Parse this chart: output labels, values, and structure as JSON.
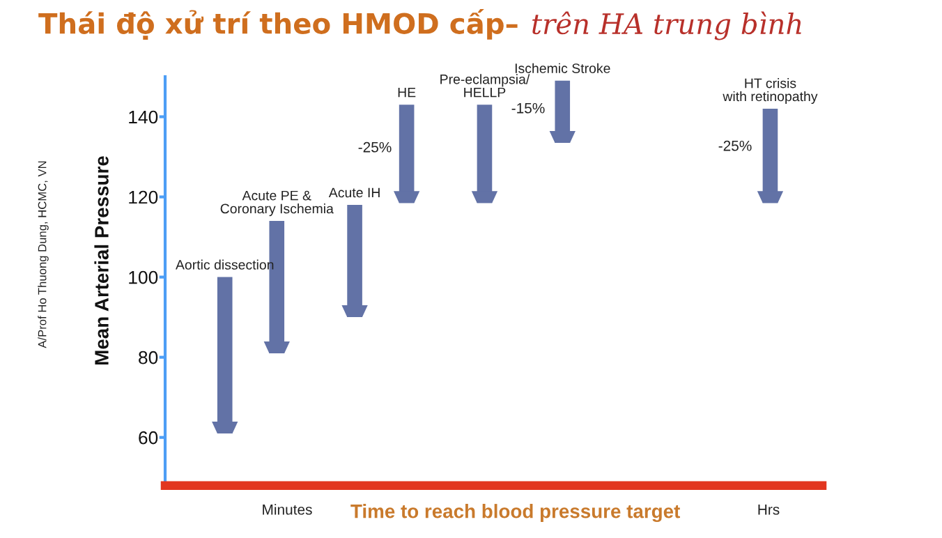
{
  "chart_data": {
    "type": "bar",
    "title": "Thái độ xử trí theo HMOD cấp–",
    "subtitle": "trên HA trung bình",
    "xlabel": "Time to reach blood pressure target",
    "ylabel": "Mean Arterial Pressure",
    "categories": [
      "Aortic dissection",
      null,
      "Acute PE &\nCoronary Ischemia",
      null,
      null,
      "Acute IH",
      null,
      "HE",
      null,
      null,
      "Pre-eclampsia/\nHELLP",
      null,
      null,
      "Ischemic Stroke",
      null,
      null,
      null,
      null,
      null,
      null,
      null,
      "HT crisis\nwith retinopathy"
    ],
    "base": [
      100,
      null,
      114,
      null,
      null,
      118,
      null,
      143,
      null,
      null,
      143,
      null,
      null,
      149,
      null,
      null,
      null,
      null,
      null,
      null,
      null,
      142
    ],
    "values": [
      -39,
      null,
      -33,
      null,
      null,
      -28,
      null,
      -24.5,
      null,
      null,
      -24.5,
      null,
      null,
      -15.5,
      null,
      null,
      null,
      null,
      null,
      null,
      null,
      -23.5
    ],
    "color": "#6272a6",
    "ylim": [
      48,
      150
    ],
    "yticks": [
      60,
      80,
      100,
      120,
      140
    ],
    "annotations": [
      "A/Prof Ho Thuong Dung, HCMC, VN",
      "Minutes",
      "Hrs",
      "-25%",
      "-15%",
      "-25%"
    ]
  }
}
